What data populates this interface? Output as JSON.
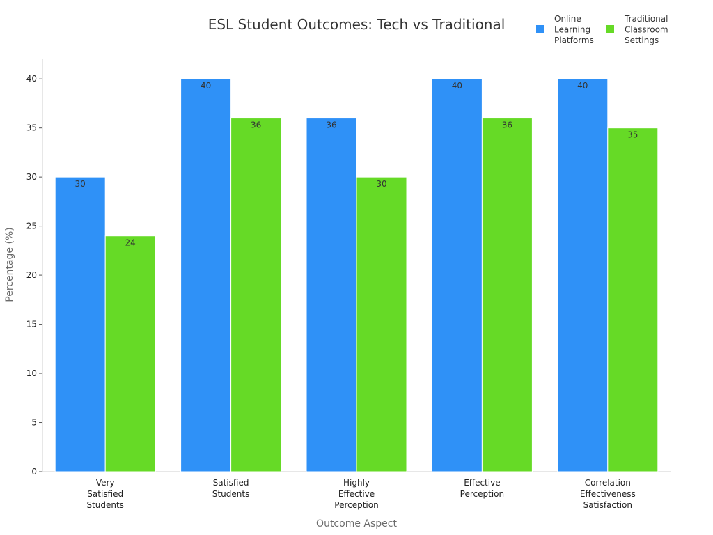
{
  "chart_data": {
    "type": "bar",
    "title": "ESL Student Outcomes: Tech vs Traditional",
    "xlabel": "Outcome Aspect",
    "ylabel": "Percentage (%)",
    "ylim": [
      0,
      42
    ],
    "yticks": [
      0,
      5,
      10,
      15,
      20,
      25,
      30,
      35,
      40
    ],
    "grid": false,
    "legend_position": "top-right",
    "categories": [
      [
        "Very",
        "Satisfied",
        "Students"
      ],
      [
        "Satisfied",
        "Students"
      ],
      [
        "Highly",
        "Effective",
        "Perception"
      ],
      [
        "Effective",
        "Perception"
      ],
      [
        "Correlation",
        "Effectiveness",
        "Satisfaction"
      ]
    ],
    "series": [
      {
        "name": [
          "Online",
          "Learning",
          "Platforms"
        ],
        "color": "#2f91f7",
        "values": [
          30,
          40,
          36,
          40,
          40
        ]
      },
      {
        "name": [
          "Traditional",
          "Classroom",
          "Settings"
        ],
        "color": "#66da26",
        "values": [
          24,
          36,
          30,
          36,
          35
        ]
      }
    ]
  }
}
